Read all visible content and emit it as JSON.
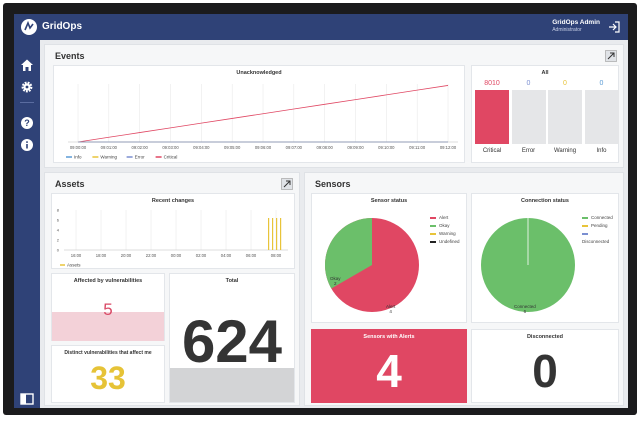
{
  "app": {
    "name": "GridOps"
  },
  "user": {
    "name": "GridOps Admin",
    "role": "Administrator"
  },
  "sidebar": {
    "items": [
      {
        "icon": "home-icon"
      },
      {
        "icon": "gear-icon"
      },
      {
        "icon": "help-icon"
      },
      {
        "icon": "info-icon"
      },
      {
        "icon": "collapse-icon"
      }
    ]
  },
  "events": {
    "title": "Events",
    "unack": {
      "title": "Unacknowledged",
      "times": [
        "09:00:00",
        "09:01:00",
        "09:02:00",
        "09:03:00",
        "09:04:00",
        "09:05:00",
        "09:06:00",
        "09:07:00",
        "09:08:00",
        "09:09:00",
        "09:10:00",
        "09:11:00",
        "09:12:00"
      ],
      "legend": [
        "Info",
        "Warning",
        "Error",
        "Critical"
      ]
    },
    "all": {
      "title": "All",
      "bars": [
        {
          "label": "Critical",
          "value": "8010"
        },
        {
          "label": "Error",
          "value": "0"
        },
        {
          "label": "Warning",
          "value": "0"
        },
        {
          "label": "Info",
          "value": "0"
        }
      ]
    }
  },
  "assets": {
    "title": "Assets",
    "recent": {
      "title": "Recent changes",
      "yticks": [
        "8",
        "6",
        "4",
        "2",
        "0"
      ],
      "xticks": [
        "16:00",
        "18:00",
        "20:00",
        "22:00",
        "00:00",
        "02:00",
        "04:00",
        "06:00",
        "08:00"
      ],
      "legend": "Assets"
    },
    "vuln": {
      "title": "Affected by vulnerabilities",
      "value": "5"
    },
    "distinct": {
      "title": "Distinct vulnerabilities that affect me",
      "value": "33"
    },
    "total": {
      "title": "Total",
      "value": "624"
    }
  },
  "sensors": {
    "title": "Sensors",
    "status": {
      "title": "Sensor status",
      "slices": [
        {
          "name": "Okay",
          "value": "2"
        },
        {
          "name": "Alert",
          "value": "4"
        }
      ],
      "legend": [
        "Alert",
        "Okay",
        "Warning",
        "Undefined"
      ]
    },
    "connection": {
      "title": "Connection status",
      "slices": [
        {
          "name": "Connected",
          "value": "6"
        }
      ],
      "legend": [
        "Connected",
        "Pending",
        "Disconnected"
      ]
    },
    "alerts": {
      "title": "Sensors with Alerts",
      "value": "4"
    },
    "disconnected": {
      "title": "Disconnected",
      "value": "0"
    }
  },
  "chart_data": [
    {
      "type": "line",
      "title": "Unacknowledged",
      "x": [
        "09:00:00",
        "09:01:00",
        "09:02:00",
        "09:03:00",
        "09:04:00",
        "09:05:00",
        "09:06:00",
        "09:07:00",
        "09:08:00",
        "09:09:00",
        "09:10:00",
        "09:11:00",
        "09:12:00"
      ],
      "series": [
        {
          "name": "Critical",
          "values": [
            0,
            650,
            1300,
            1950,
            2600,
            3250,
            3900,
            4550,
            5200,
            5850,
            6500,
            7150,
            7800
          ]
        },
        {
          "name": "Info",
          "values": [
            0,
            0,
            0,
            0,
            0,
            0,
            0,
            0,
            0,
            0,
            0,
            0,
            0
          ]
        },
        {
          "name": "Warning",
          "values": [
            0,
            0,
            0,
            0,
            0,
            0,
            0,
            0,
            0,
            0,
            0,
            0,
            0
          ]
        },
        {
          "name": "Error",
          "values": [
            0,
            0,
            0,
            0,
            0,
            0,
            0,
            0,
            0,
            0,
            0,
            0,
            0
          ]
        }
      ]
    },
    {
      "type": "bar",
      "title": "All",
      "categories": [
        "Critical",
        "Error",
        "Warning",
        "Info"
      ],
      "values": [
        8010,
        0,
        0,
        0
      ]
    },
    {
      "type": "bar",
      "title": "Recent changes",
      "categories": [
        "16:00",
        "18:00",
        "20:00",
        "22:00",
        "00:00",
        "02:00",
        "04:00",
        "06:00",
        "08:00"
      ],
      "series": [
        {
          "name": "Assets",
          "values": [
            0,
            0,
            0,
            0,
            0,
            0,
            0,
            0,
            8
          ]
        }
      ],
      "ylim": [
        0,
        8
      ]
    },
    {
      "type": "pie",
      "title": "Sensor status",
      "categories": [
        "Alert",
        "Okay"
      ],
      "values": [
        4,
        2
      ]
    },
    {
      "type": "pie",
      "title": "Connection status",
      "categories": [
        "Connected"
      ],
      "values": [
        6
      ]
    }
  ],
  "colors": {
    "nav": "#2f4277",
    "critical": "#e04763",
    "warning": "#e8c43a",
    "error": "#7b8fd1",
    "info": "#5a9bd5",
    "okay": "#6bbf6a",
    "alert": "#e04763"
  }
}
